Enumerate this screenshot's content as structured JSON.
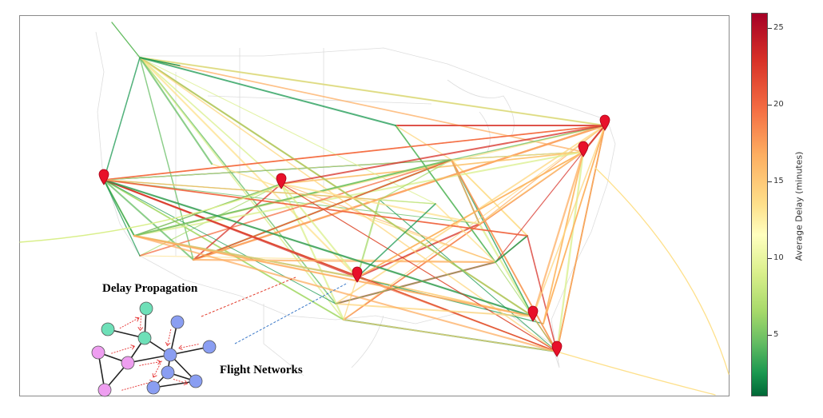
{
  "annotations": {
    "delay_propagation": "Delay Propagation",
    "flight_networks": "Flight Networks"
  },
  "colorbar": {
    "title": "Average Delay (minutes)",
    "ticks": [
      "25",
      "20",
      "15",
      "10",
      "5"
    ],
    "min": 1,
    "max": 26,
    "colormap": "RdYlGn_r"
  },
  "colors": {
    "marker": "#e8102a",
    "prop_arrow": "#e53030",
    "link_red": "#e23a2a",
    "link_blue": "#3a78c8",
    "node_teal": "#6ee0b8",
    "node_pink": "#ee9ef0",
    "node_blue": "#8a9ef2"
  }
}
